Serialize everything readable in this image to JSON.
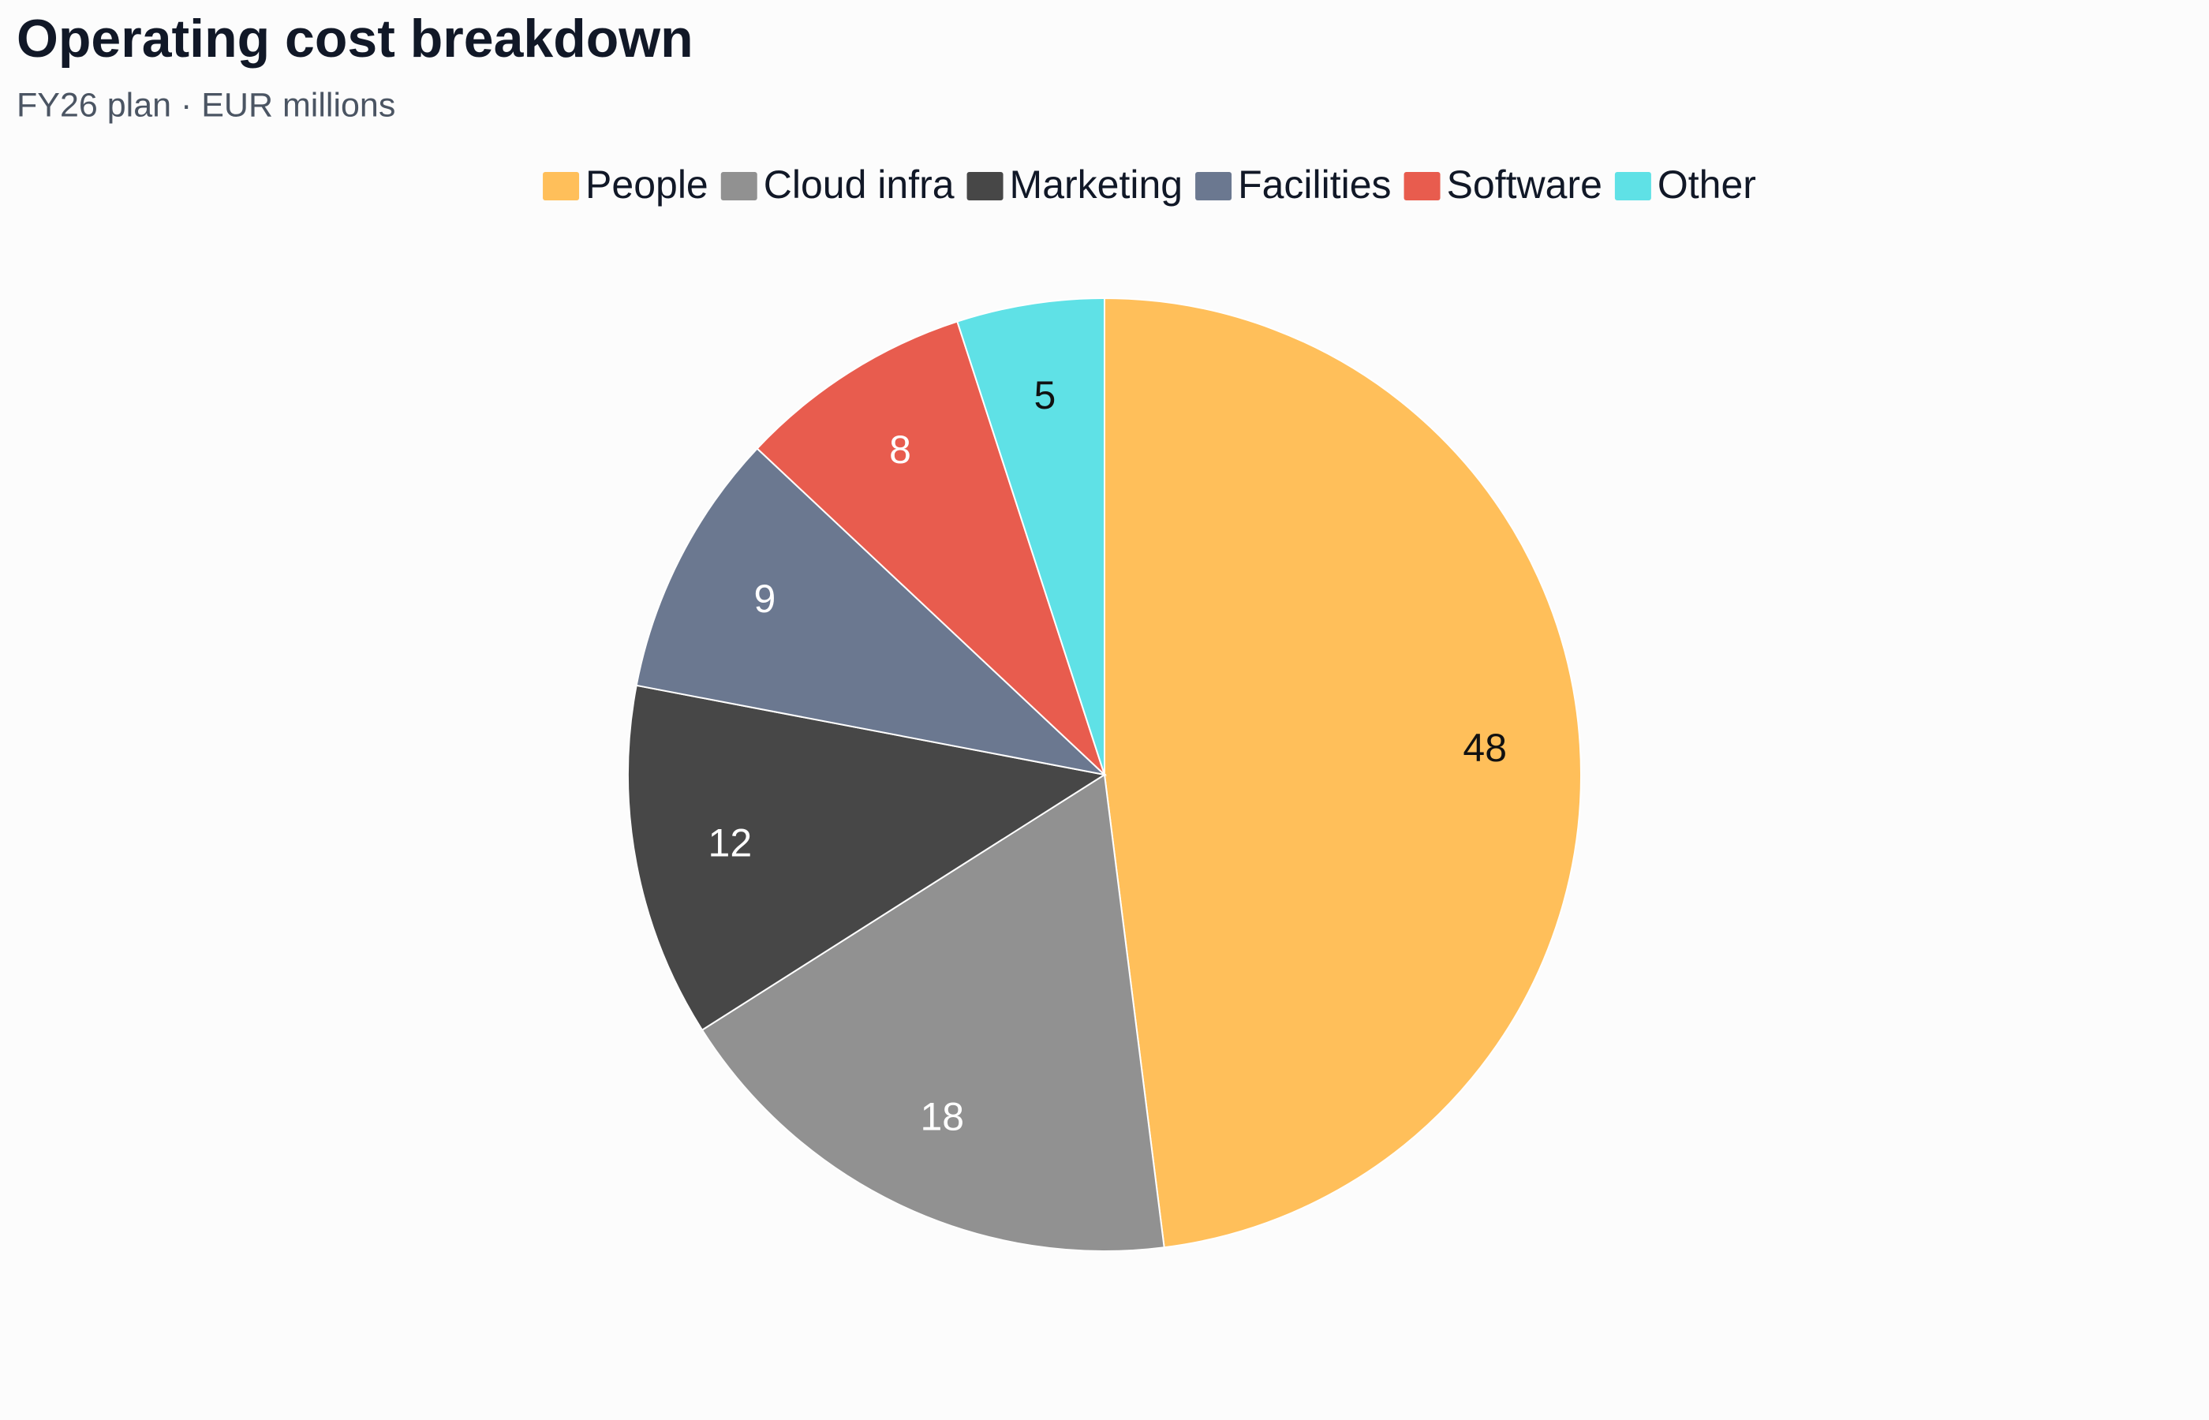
{
  "chart_data": {
    "type": "pie",
    "title": "Operating cost breakdown",
    "subtitle": "FY26 plan · EUR millions",
    "categories": [
      "People",
      "Cloud infra",
      "Marketing",
      "Facilities",
      "Software",
      "Other"
    ],
    "values": [
      48,
      18,
      12,
      9,
      8,
      5
    ],
    "colors": [
      "#ffbf5a",
      "#919191",
      "#474747",
      "#6b7890",
      "#e85c4e",
      "#5fe1e6"
    ],
    "legend": "top"
  }
}
